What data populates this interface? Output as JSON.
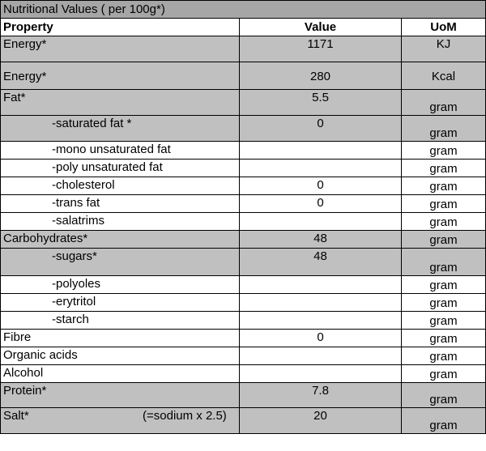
{
  "table": {
    "title": "Nutritional Values ( per 100g*)",
    "headers": {
      "property": "Property",
      "value": "Value",
      "uom": "UoM"
    },
    "rows": [
      {
        "property": "Energy*",
        "value": "1171",
        "uom": "KJ"
      },
      {
        "property": "Energy*",
        "value": "280",
        "uom": "Kcal"
      },
      {
        "property": "Fat*",
        "value": "5.5",
        "uom": "gram"
      },
      {
        "property": "-saturated fat *",
        "value": "0",
        "uom": "gram"
      },
      {
        "property": "-mono unsaturated fat",
        "value": "",
        "uom": "gram"
      },
      {
        "property": "-poly unsaturated fat",
        "value": "",
        "uom": "gram"
      },
      {
        "property": "-cholesterol",
        "value": "0",
        "uom": "gram"
      },
      {
        "property": "-trans fat",
        "value": "0",
        "uom": "gram"
      },
      {
        "property": "-salatrims",
        "value": "",
        "uom": "gram"
      },
      {
        "property": "Carbohydrates*",
        "value": "48",
        "uom": "gram"
      },
      {
        "property": "-sugars*",
        "value": "48",
        "uom": "gram"
      },
      {
        "property": "-polyoles",
        "value": "",
        "uom": "gram"
      },
      {
        "property": "-erytritol",
        "value": "",
        "uom": "gram"
      },
      {
        "property": "-starch",
        "value": "",
        "uom": "gram"
      },
      {
        "property": "Fibre",
        "value": "0",
        "uom": "gram"
      },
      {
        "property": "Organic acids",
        "value": "",
        "uom": "gram"
      },
      {
        "property": "Alcohol",
        "value": "",
        "uom": "gram"
      },
      {
        "property": "Protein*",
        "value": "7.8",
        "uom": "gram"
      },
      {
        "property": "Salt*",
        "note": "(=sodium  x 2.5)",
        "value": "20",
        "uom": "gram"
      }
    ]
  },
  "colors": {
    "title_bg": "#a6a6a6",
    "highlight_bg": "#c0c0c0",
    "border": "#000000"
  }
}
